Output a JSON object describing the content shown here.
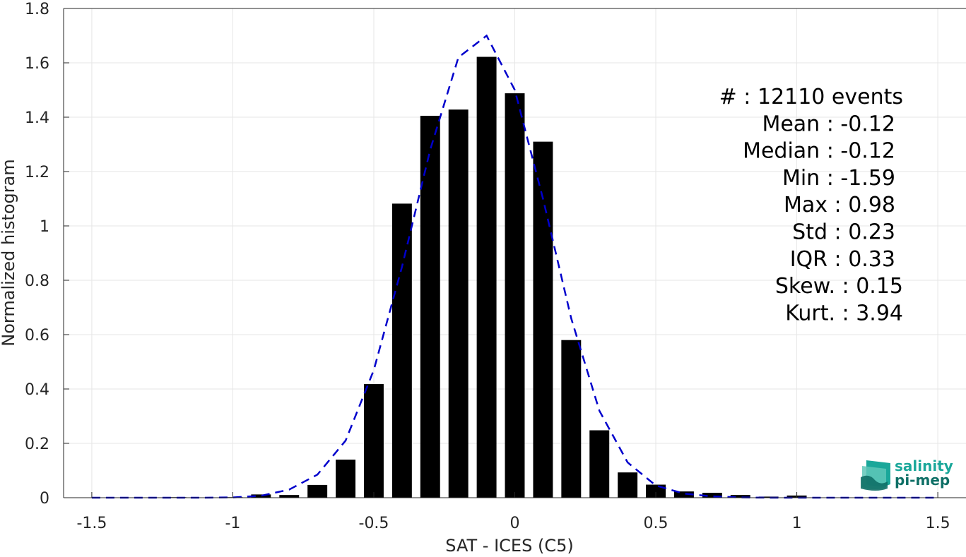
{
  "chart_data": {
    "type": "bar",
    "xlabel": "SAT - ICES (C5)",
    "ylabel": "Normalized histogram",
    "xlim": [
      -1.6,
      1.6
    ],
    "ylim": [
      0,
      1.8
    ],
    "grid": true,
    "xticks": [
      -1.5,
      -1,
      -0.5,
      0,
      0.5,
      1,
      1.5
    ],
    "xtick_labels": [
      "-1.5",
      "-1",
      "-0.5",
      "0",
      "0.5",
      "1",
      "1.5"
    ],
    "yticks": [
      0,
      0.2,
      0.4,
      0.6,
      0.8,
      1,
      1.2,
      1.4,
      1.6,
      1.8
    ],
    "ytick_labels": [
      "0",
      "0.2",
      "0.4",
      "0.6",
      "0.8",
      "1",
      "1.2",
      "1.4",
      "1.6",
      "1.8"
    ],
    "bar_width": 0.07,
    "bars": {
      "x": [
        -1.5,
        -1.4,
        -1.3,
        -1.2,
        -1.1,
        -1.0,
        -0.9,
        -0.8,
        -0.7,
        -0.6,
        -0.5,
        -0.4,
        -0.3,
        -0.2,
        -0.1,
        0.0,
        0.1,
        0.2,
        0.3,
        0.4,
        0.5,
        0.6,
        0.7,
        0.8,
        0.9,
        1.0,
        1.1,
        1.2,
        1.3,
        1.4,
        1.5
      ],
      "values": [
        0.0,
        0.0,
        0.0,
        0.002,
        0.0,
        0.002,
        0.012,
        0.01,
        0.047,
        0.14,
        0.418,
        1.082,
        1.405,
        1.428,
        1.622,
        1.488,
        1.31,
        0.58,
        0.248,
        0.093,
        0.048,
        0.023,
        0.018,
        0.01,
        0.004,
        0.008,
        0.0,
        0.0,
        0.0,
        0.0,
        0.0
      ],
      "color": "#000000"
    },
    "fit_curve": {
      "style": "dashed",
      "color": "#0000cc",
      "x": [
        -1.5,
        -1.4,
        -1.3,
        -1.2,
        -1.1,
        -1.0,
        -0.9,
        -0.8,
        -0.7,
        -0.6,
        -0.5,
        -0.4,
        -0.3,
        -0.2,
        -0.1,
        0.0,
        0.1,
        0.2,
        0.3,
        0.4,
        0.5,
        0.6,
        0.7,
        0.8,
        0.9,
        1.0,
        1.1,
        1.2,
        1.3,
        1.4,
        1.5
      ],
      "y": [
        0.0,
        0.0,
        0.0,
        0.0,
        0.0,
        0.001,
        0.007,
        0.03,
        0.085,
        0.21,
        0.47,
        0.85,
        1.28,
        1.62,
        1.7,
        1.5,
        1.1,
        0.66,
        0.32,
        0.13,
        0.045,
        0.015,
        0.005,
        0.001,
        0.0,
        0.0,
        0.0,
        0.0,
        0.0,
        0.0,
        0.0
      ]
    },
    "annotations": [
      "#  : 12110 events",
      "Mean : -0.12",
      "Median : -0.12",
      "Min : -1.59",
      "Max : 0.98",
      "Std : 0.23",
      "IQR : 0.33",
      "Skew. : 0.15",
      "Kurt. : 3.94"
    ]
  },
  "logo": {
    "line1": "salinity",
    "line2": "pi-mep",
    "color_primary": "#1aa79a",
    "color_secondary": "#0e6f66"
  }
}
